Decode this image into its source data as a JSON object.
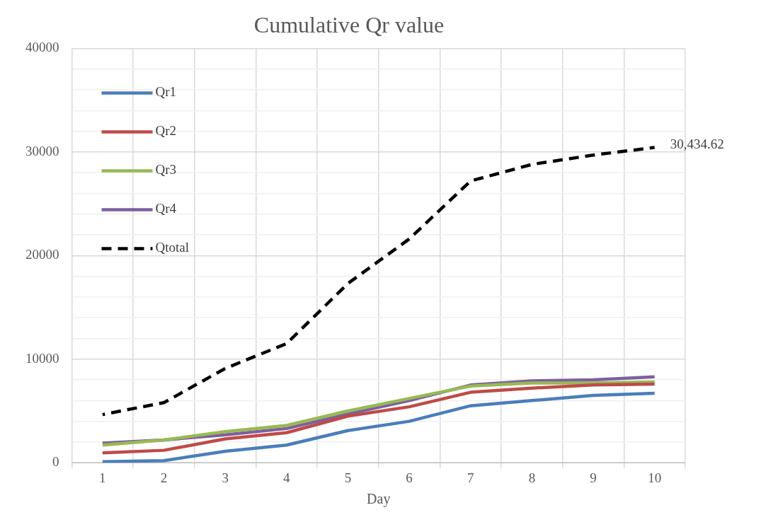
{
  "chart_data": {
    "type": "line",
    "title": "Cumulative Qr value",
    "xlabel": "Day",
    "categories": [
      "1",
      "2",
      "3",
      "4",
      "5",
      "6",
      "7",
      "8",
      "9",
      "10"
    ],
    "series": [
      {
        "name": "Qr1",
        "color": "#4a7ebb",
        "values": [
          100,
          200,
          1100,
          1700,
          3100,
          4000,
          5500,
          6000,
          6500,
          6700
        ]
      },
      {
        "name": "Qr2",
        "color": "#be4b48",
        "values": [
          950,
          1200,
          2300,
          2900,
          4500,
          5400,
          6800,
          7200,
          7500,
          7600
        ]
      },
      {
        "name": "Qr3",
        "color": "#98b954",
        "values": [
          1700,
          2200,
          3000,
          3600,
          5000,
          6200,
          7400,
          7700,
          7700,
          7800
        ]
      },
      {
        "name": "Qr4",
        "color": "#7d60a0",
        "values": [
          1900,
          2200,
          2700,
          3300,
          4700,
          6000,
          7500,
          7900,
          8000,
          8300
        ]
      },
      {
        "name": "Qtotal",
        "color": "#000000",
        "line_style": "dashed",
        "values": [
          4650,
          5800,
          9100,
          11500,
          17300,
          21600,
          27200,
          28800,
          29700,
          30434.62
        ],
        "value_labels": [
          null,
          null,
          null,
          null,
          null,
          null,
          null,
          null,
          null,
          "30,434.62"
        ]
      }
    ],
    "ylim": [
      0,
      40000
    ],
    "yticks": [
      0,
      {
        "value": 2000,
        "label": null
      },
      {
        "value": 4000,
        "label": null
      },
      {
        "value": 6000,
        "label": null
      },
      {
        "value": 8000,
        "label": null
      },
      10000,
      {
        "value": 12000,
        "label": null
      },
      {
        "value": 14000,
        "label": null
      },
      {
        "value": 16000,
        "label": null
      },
      {
        "value": 18000,
        "label": null
      },
      20000,
      {
        "value": 22000,
        "label": null
      },
      {
        "value": 24000,
        "label": null
      },
      {
        "value": 26000,
        "label": null
      },
      {
        "value": 28000,
        "label": null
      },
      30000,
      {
        "value": 32000,
        "label": null
      },
      {
        "value": 34000,
        "label": null
      },
      {
        "value": 36000,
        "label": null
      },
      {
        "value": 38000,
        "label": null
      },
      40000
    ],
    "grid": true,
    "legend": "top left",
    "marker": "none",
    "line_style": "solid"
  }
}
